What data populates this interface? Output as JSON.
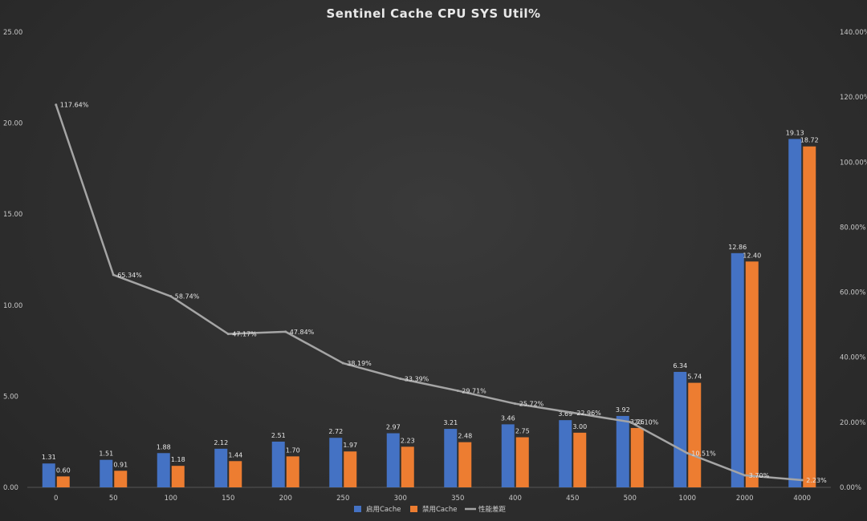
{
  "chart_data": {
    "type": "bar",
    "title": "Sentinel Cache CPU SYS Util%",
    "categories": [
      "0",
      "50",
      "100",
      "150",
      "200",
      "250",
      "300",
      "350",
      "400",
      "450",
      "500",
      "1000",
      "2000",
      "4000"
    ],
    "series": [
      {
        "name": "启用Cache",
        "type": "bar",
        "axis": "left",
        "color": "#4472c4",
        "values": [
          1.31,
          1.51,
          1.88,
          2.12,
          2.51,
          2.72,
          2.97,
          3.21,
          3.46,
          3.69,
          3.92,
          6.34,
          12.86,
          19.13
        ],
        "labels": [
          "1.31",
          "1.51",
          "1.88",
          "2.12",
          "2.51",
          "2.72",
          "2.97",
          "3.21",
          "3.46",
          "3.69",
          "3.92",
          "6.34",
          "12.86",
          "19.13"
        ]
      },
      {
        "name": "禁用Cache",
        "type": "bar",
        "axis": "left",
        "color": "#ed7d31",
        "values": [
          0.6,
          0.91,
          1.18,
          1.44,
          1.7,
          1.97,
          2.23,
          2.48,
          2.75,
          3.0,
          3.26,
          5.74,
          12.4,
          18.72
        ],
        "labels": [
          "0.60",
          "0.91",
          "1.18",
          "1.44",
          "1.70",
          "1.97",
          "2.23",
          "2.48",
          "2.75",
          "3.00",
          "3.26",
          "5.74",
          "12.40",
          "18.72"
        ]
      },
      {
        "name": "性能差距",
        "type": "line",
        "axis": "right",
        "color": "#a5a5a5",
        "values": [
          117.64,
          65.34,
          58.74,
          47.17,
          47.84,
          38.19,
          33.39,
          29.71,
          25.72,
          22.96,
          20.1,
          10.51,
          3.7,
          2.23
        ],
        "labels": [
          "117.64%",
          "65.34%",
          "58.74%",
          "47.17%",
          "47.84%",
          "38.19%",
          "33.39%",
          "29.71%",
          "25.72%",
          "22.96%",
          "20.10%",
          "10.51%",
          "3.70%",
          "2.23%"
        ]
      }
    ],
    "y_left": {
      "range": [
        0,
        25
      ],
      "ticks": [
        0,
        5,
        10,
        15,
        20,
        25
      ],
      "tick_labels": [
        "0.00",
        "5.00",
        "10.00",
        "15.00",
        "20.00",
        "25.00"
      ]
    },
    "y_right": {
      "range": [
        0,
        140
      ],
      "ticks": [
        0,
        20,
        40,
        60,
        80,
        100,
        120,
        140
      ],
      "tick_labels": [
        "0.00%",
        "20.00%",
        "40.00%",
        "60.00%",
        "80.00%",
        "100.00%",
        "120.00%",
        "140.00%"
      ]
    },
    "grid": false,
    "legend_position": "bottom"
  }
}
